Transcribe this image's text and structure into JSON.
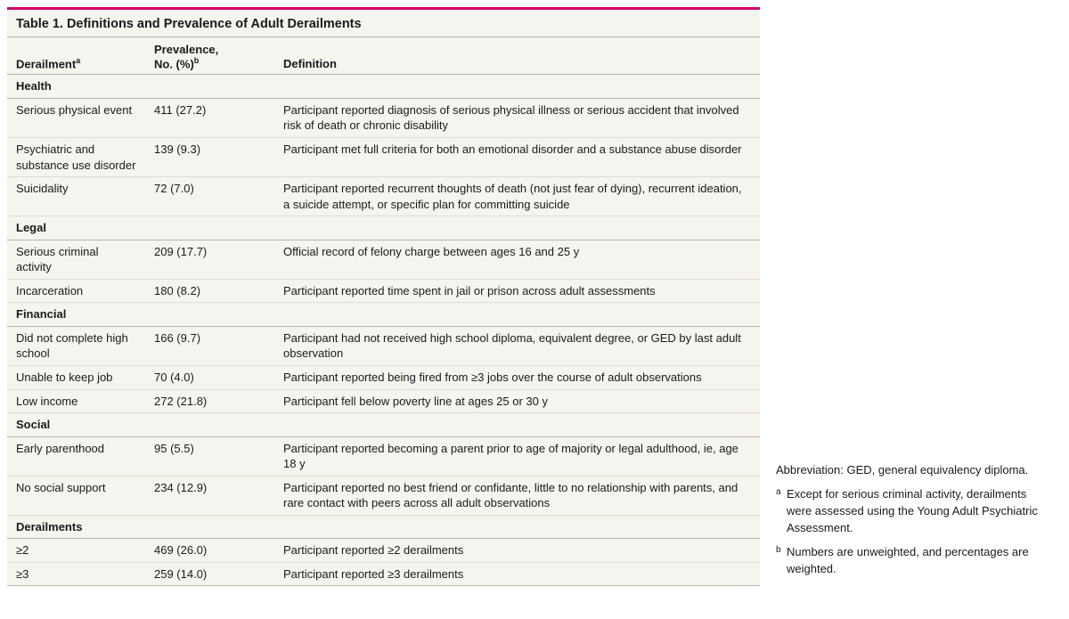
{
  "colors": {
    "accent_top_border": "#d6006d",
    "table_bg": "#f5f4ee",
    "rule_strong": "#b8b6ab",
    "rule_light": "#dedcd0",
    "text": "#1a1a1a"
  },
  "table": {
    "title": "Table 1. Definitions and Prevalence of Adult Derailments",
    "headers": {
      "col1_a": "Derailment",
      "col1_sup": "a",
      "col2_a": "Prevalence,",
      "col2_b": "No. (%)",
      "col2_sup": "b",
      "col3": "Definition"
    },
    "sections": [
      {
        "label": "Health",
        "rows": [
          {
            "name": "Serious physical event",
            "prev": "411 (27.2)",
            "def": "Participant reported diagnosis of serious physical illness or serious accident that involved risk of death or chronic disability"
          },
          {
            "name": "Psychiatric and substance use disorder",
            "prev": "139 (9.3)",
            "def": "Participant met full criteria for both an emotional disorder and a substance abuse disorder"
          },
          {
            "name": "Suicidality",
            "prev": "72 (7.0)",
            "def": "Participant reported recurrent thoughts of death (not just fear of dying), recurrent ideation, a suicide attempt, or specific plan for committing suicide"
          }
        ]
      },
      {
        "label": "Legal",
        "rows": [
          {
            "name": "Serious criminal activity",
            "prev": "209 (17.7)",
            "def": "Official record of felony charge between ages 16 and 25 y"
          },
          {
            "name": "Incarceration",
            "prev": "180 (8.2)",
            "def": "Participant reported time spent in jail or prison across adult assessments"
          }
        ]
      },
      {
        "label": "Financial",
        "rows": [
          {
            "name": "Did not complete high school",
            "prev": "166 (9.7)",
            "def": "Participant had not received high school diploma, equivalent degree, or GED by last adult observation"
          },
          {
            "name": "Unable to keep job",
            "prev": "70 (4.0)",
            "def": "Participant reported being fired from ≥3 jobs over the course of adult observations"
          },
          {
            "name": "Low income",
            "prev": "272 (21.8)",
            "def": "Participant fell below poverty line at ages 25 or 30 y"
          }
        ]
      },
      {
        "label": "Social",
        "rows": [
          {
            "name": "Early parenthood",
            "prev": "95 (5.5)",
            "def": "Participant reported becoming a parent prior to age of majority or legal adulthood, ie, age 18 y"
          },
          {
            "name": "No social support",
            "prev": "234 (12.9)",
            "def": "Participant reported no best friend or confidante, little to no relationship with parents, and rare contact with peers across all adult observations"
          }
        ]
      },
      {
        "label": "Derailments",
        "rows": [
          {
            "name": "≥2",
            "prev": "469 (26.0)",
            "def": "Participant reported ≥2 derailments"
          },
          {
            "name": "≥3",
            "prev": "259 (14.0)",
            "def": "Participant reported ≥3 derailments"
          }
        ]
      }
    ]
  },
  "notes": {
    "abbrev": "Abbreviation: GED, general equivalency diploma.",
    "a_marker": "a",
    "a_text": "Except for serious criminal activity, derailments were assessed using the Young Adult Psychiatric Assessment.",
    "b_marker": "b",
    "b_text": "Numbers are unweighted, and percentages are weighted."
  }
}
